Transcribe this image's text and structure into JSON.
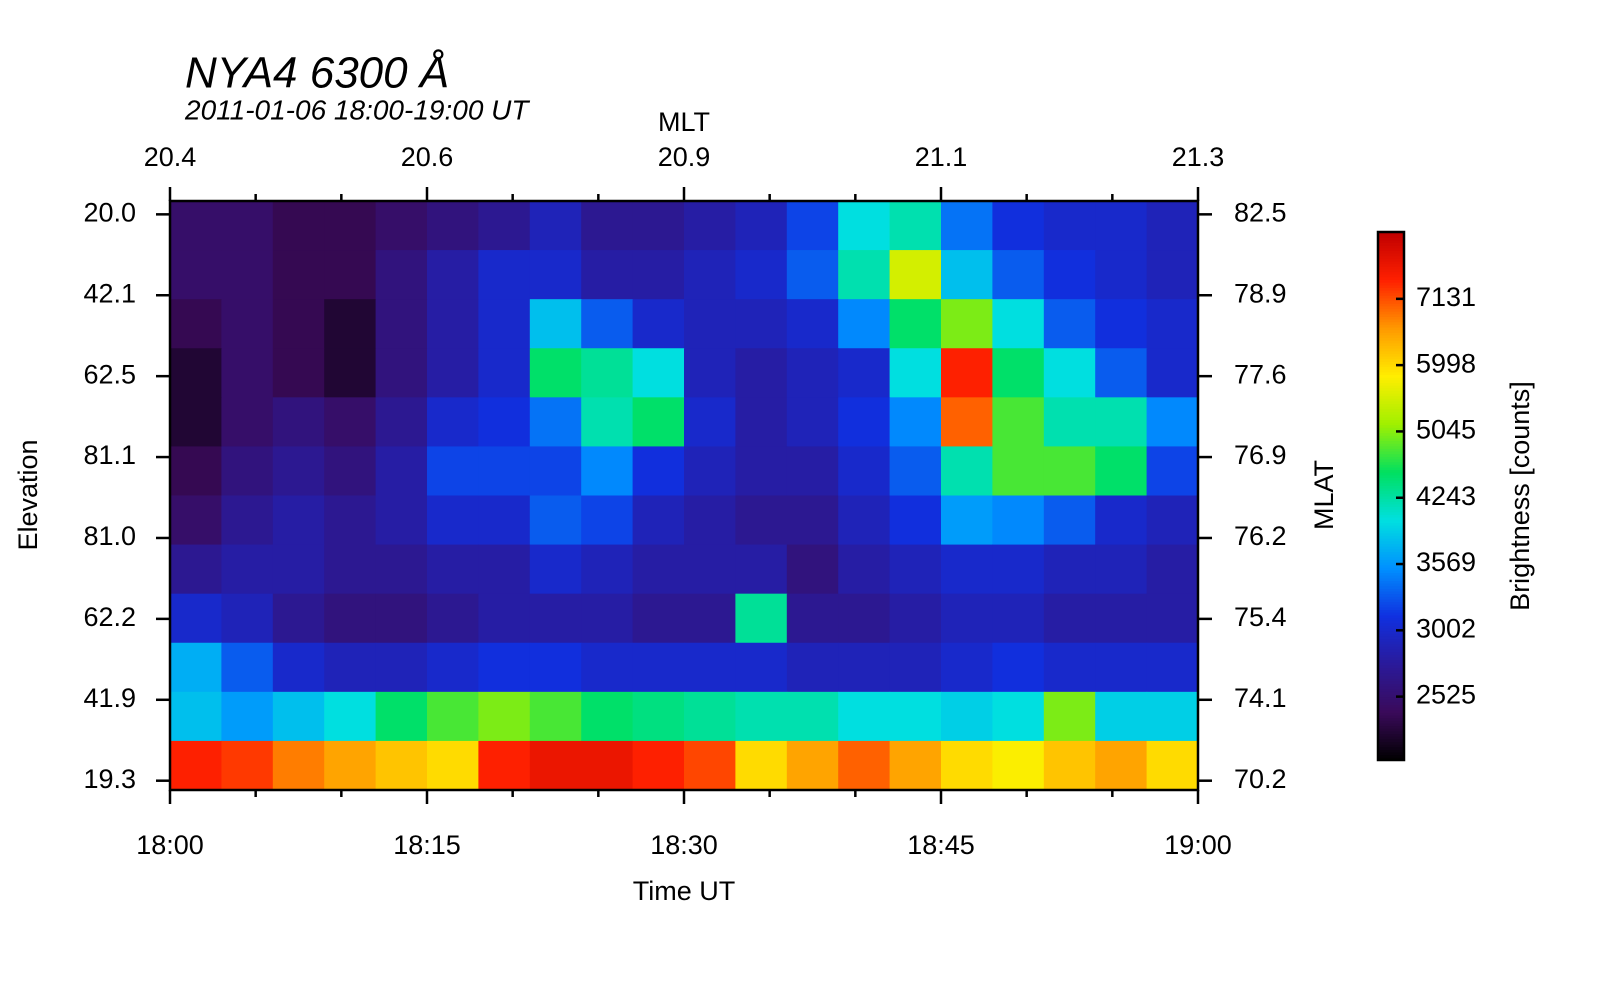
{
  "chart_data": {
    "type": "heatmap",
    "title": "NYA4 6300 Å",
    "subtitle": "2011-01-06 18:00-19:00 UT",
    "xlabel": "Time UT",
    "x2label": "MLT",
    "ylabel": "Elevation",
    "y2label": "MLAT",
    "colorbar_label": "Brightness [counts]",
    "xlim": [
      0,
      60
    ],
    "xticks": [
      {
        "value": 0,
        "label": "18:00"
      },
      {
        "value": 15,
        "label": "18:15"
      },
      {
        "value": 30,
        "label": "18:30"
      },
      {
        "value": 45,
        "label": "18:45"
      },
      {
        "value": 60,
        "label": "19:00"
      }
    ],
    "x2ticks": [
      {
        "value": 0,
        "label": "20.4"
      },
      {
        "value": 15,
        "label": "20.6"
      },
      {
        "value": 30,
        "label": "20.9"
      },
      {
        "value": 45,
        "label": "21.1"
      },
      {
        "value": 60,
        "label": "21.3"
      }
    ],
    "xminorticks": [
      5,
      10,
      20,
      25,
      35,
      40,
      50,
      55
    ],
    "ylim": [
      7.115,
      -0.165
    ],
    "yticks": [
      {
        "value": 0,
        "label": "20.0"
      },
      {
        "value": 1,
        "label": "42.1"
      },
      {
        "value": 2,
        "label": "62.5"
      },
      {
        "value": 3,
        "label": "81.1"
      },
      {
        "value": 4,
        "label": "81.0"
      },
      {
        "value": 5,
        "label": "62.2"
      },
      {
        "value": 6,
        "label": "41.9"
      },
      {
        "value": 7,
        "label": "19.3"
      }
    ],
    "y2ticks": [
      {
        "value": 0,
        "label": "82.5"
      },
      {
        "value": 1,
        "label": "78.9"
      },
      {
        "value": 2,
        "label": "77.6"
      },
      {
        "value": 3,
        "label": "76.9"
      },
      {
        "value": 4,
        "label": "76.2"
      },
      {
        "value": 5,
        "label": "75.4"
      },
      {
        "value": 6,
        "label": "74.1"
      },
      {
        "value": 7,
        "label": "70.2"
      }
    ],
    "zlim": [
      2140,
      8490
    ],
    "zlog": true,
    "zticks": [
      2525,
      3002,
      3569,
      4243,
      5045,
      5998,
      7131
    ],
    "colors": [
      "#000000",
      "#3a0a5a",
      "#2a1a9a",
      "#1030e0",
      "#0090ff",
      "#00e0e0",
      "#00e060",
      "#a0f000",
      "#ffee00",
      "#ff9900",
      "#ff2000",
      "#c00000"
    ],
    "z": [
      [
        2500,
        2500,
        2400,
        2400,
        2500,
        2600,
        2700,
        2900,
        2700,
        2700,
        2800,
        2900,
        3200,
        4000,
        4200,
        3400,
        3100,
        3000,
        3000,
        2900
      ],
      [
        2500,
        2500,
        2400,
        2400,
        2600,
        2800,
        3000,
        3000,
        2800,
        2800,
        2900,
        3000,
        3300,
        4200,
        5500,
        3800,
        3300,
        3100,
        3000,
        2900
      ],
      [
        2400,
        2500,
        2400,
        2300,
        2600,
        2800,
        3000,
        3800,
        3300,
        3000,
        2900,
        2900,
        3000,
        3500,
        4500,
        5000,
        4000,
        3300,
        3100,
        3000
      ],
      [
        2300,
        2500,
        2400,
        2300,
        2600,
        2800,
        3000,
        4500,
        4300,
        4000,
        2900,
        2800,
        2900,
        3000,
        4000,
        7500,
        4500,
        4000,
        3300,
        3000
      ],
      [
        2300,
        2500,
        2600,
        2500,
        2700,
        3000,
        3100,
        3400,
        4200,
        4500,
        3000,
        2800,
        2900,
        3100,
        3500,
        7000,
        4800,
        4200,
        4200,
        3500
      ],
      [
        2400,
        2600,
        2700,
        2600,
        2800,
        3200,
        3200,
        3200,
        3500,
        3100,
        2900,
        2800,
        2800,
        3000,
        3300,
        4200,
        4800,
        4800,
        4500,
        3200
      ],
      [
        2500,
        2700,
        2800,
        2700,
        2800,
        3000,
        3000,
        3300,
        3200,
        2900,
        2800,
        2700,
        2700,
        2900,
        3100,
        3600,
        3500,
        3300,
        3000,
        2900
      ],
      [
        2700,
        2800,
        2800,
        2700,
        2700,
        2800,
        2800,
        3000,
        2900,
        2800,
        2800,
        2800,
        2600,
        2800,
        2900,
        3000,
        3000,
        2900,
        2900,
        2800
      ],
      [
        3000,
        2900,
        2700,
        2600,
        2600,
        2700,
        2800,
        2800,
        2800,
        2700,
        2700,
        4300,
        2700,
        2700,
        2800,
        2900,
        2900,
        2800,
        2800,
        2800
      ],
      [
        3700,
        3300,
        3000,
        2900,
        2900,
        3000,
        3100,
        3100,
        3000,
        3000,
        3000,
        3000,
        2900,
        2900,
        2900,
        3000,
        3100,
        3000,
        3000,
        3000
      ],
      [
        3800,
        3600,
        3800,
        4000,
        4500,
        4800,
        5000,
        4800,
        4500,
        4400,
        4300,
        4200,
        4200,
        4000,
        4000,
        3900,
        4000,
        5000,
        3900,
        3900
      ],
      [
        7500,
        7300,
        6800,
        6500,
        6200,
        6000,
        7500,
        7800,
        7800,
        7500,
        7200,
        6000,
        6500,
        7000,
        6500,
        6000,
        5800,
        6200,
        6500,
        6000
      ]
    ]
  }
}
